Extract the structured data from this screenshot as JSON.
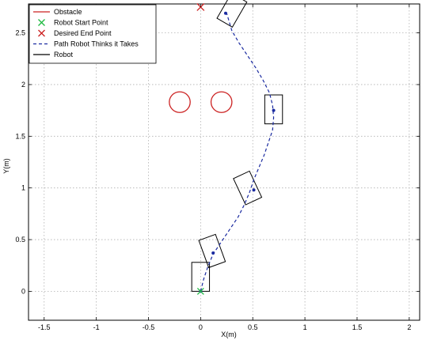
{
  "chart_data": {
    "type": "line",
    "xlabel": "X(m)",
    "ylabel": "Y(m)",
    "xlim": [
      -1.65,
      2.1
    ],
    "ylim": [
      -0.28,
      2.78
    ],
    "xticks": [
      -1.5,
      -1,
      -0.5,
      0,
      0.5,
      1,
      1.5,
      2
    ],
    "yticks": [
      0,
      0.5,
      1,
      1.5,
      2,
      2.5
    ],
    "xtick_labels": [
      "-1.5",
      "-1",
      "-0.5",
      "0",
      "0.5",
      "1",
      "1.5",
      "2"
    ],
    "ytick_labels": [
      "0",
      "0.5",
      "1",
      "1.5",
      "2",
      "2.5"
    ],
    "grid": true,
    "legend_position": "top-left",
    "legend": [
      {
        "label": "Obstacle",
        "style": "red-line"
      },
      {
        "label": "Robot Start Point",
        "style": "green-x"
      },
      {
        "label": "Desired End Point",
        "style": "red-x"
      },
      {
        "label": "Path Robot Thinks it Takes",
        "style": "blue-dashed"
      },
      {
        "label": "Robot",
        "style": "black-line"
      }
    ],
    "obstacles": [
      {
        "x": -0.2,
        "y": 1.83,
        "r": 0.1
      },
      {
        "x": 0.2,
        "y": 1.83,
        "r": 0.1
      }
    ],
    "start_point": {
      "x": 0,
      "y": 0
    },
    "end_point": {
      "x": 0,
      "y": 2.75
    },
    "path": {
      "x": [
        0,
        0.03,
        0.07,
        0.12,
        0.2,
        0.28,
        0.36,
        0.42,
        0.47,
        0.51,
        0.56,
        0.61,
        0.65,
        0.69,
        0.7,
        0.69,
        0.66,
        0.6,
        0.53,
        0.45,
        0.37,
        0.3,
        0.25
      ],
      "y": [
        0,
        0.12,
        0.24,
        0.36,
        0.48,
        0.6,
        0.72,
        0.84,
        0.96,
        1.08,
        1.2,
        1.32,
        1.44,
        1.56,
        1.68,
        1.8,
        1.92,
        2.04,
        2.16,
        2.28,
        2.4,
        2.52,
        2.69
      ]
    },
    "path_markers": [
      {
        "x": 0,
        "y": 0
      },
      {
        "x": 0.12,
        "y": 0.37
      },
      {
        "x": 0.51,
        "y": 0.98
      },
      {
        "x": 0.7,
        "y": 1.75
      },
      {
        "x": 0.24,
        "y": 2.69
      }
    ],
    "robots": [
      {
        "x": 0,
        "y": 0,
        "w": 0.17,
        "h": 0.28,
        "angle": 0
      },
      {
        "x": 0.11,
        "y": 0.25,
        "w": 0.17,
        "h": 0.28,
        "angle": -20
      },
      {
        "x": 0.45,
        "y": 0.86,
        "w": 0.17,
        "h": 0.28,
        "angle": -25
      },
      {
        "x": 0.7,
        "y": 1.62,
        "w": 0.17,
        "h": 0.28,
        "angle": 0
      },
      {
        "x": 0.3,
        "y": 2.58,
        "w": 0.17,
        "h": 0.28,
        "angle": 30
      }
    ],
    "colors": {
      "obstacle": "#cc2222",
      "start": "#22bb44",
      "end": "#cc2222",
      "path": "#1a2aa0",
      "robot": "#000000",
      "grid": "#b0b0b0"
    }
  }
}
